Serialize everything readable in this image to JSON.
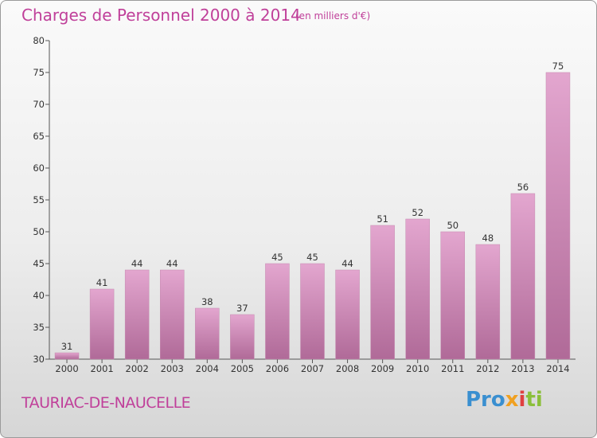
{
  "chart_data": {
    "type": "bar",
    "title": "Charges de Personnel 2000 à 2014",
    "subtitle": "(en milliers d'€)",
    "categories": [
      "2000",
      "2001",
      "2002",
      "2003",
      "2004",
      "2005",
      "2006",
      "2007",
      "2008",
      "2009",
      "2010",
      "2011",
      "2012",
      "2013",
      "2014"
    ],
    "values": [
      31,
      41,
      44,
      44,
      38,
      37,
      45,
      45,
      44,
      51,
      52,
      50,
      48,
      56,
      75
    ],
    "ylim": [
      30,
      80
    ],
    "yticks": [
      30,
      35,
      40,
      45,
      50,
      55,
      60,
      65,
      70,
      75,
      80
    ],
    "grid": false,
    "bar_color": "#dc98c4"
  },
  "footer": {
    "commune": "TAURIAC-DE-NAUCELLE",
    "logo": [
      "Pro",
      "x",
      "i",
      "ti"
    ]
  }
}
